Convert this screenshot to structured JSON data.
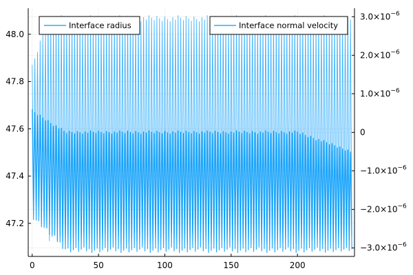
{
  "chart_data": {
    "type": "line",
    "title": "",
    "xlabel": "",
    "ylabel": "",
    "y2label": "",
    "grid": true,
    "xlim": [
      -3,
      243
    ],
    "ylim": [
      47.06,
      48.11
    ],
    "y2lim": [
      -3.22e-06,
      3.22e-06
    ],
    "x_ticks": [
      {
        "value": 0,
        "label": "0"
      },
      {
        "value": 50,
        "label": "50"
      },
      {
        "value": 100,
        "label": "100"
      },
      {
        "value": 150,
        "label": "150"
      },
      {
        "value": 200,
        "label": "200"
      }
    ],
    "y_ticks": [
      {
        "value": 47.2,
        "label": "47.2"
      },
      {
        "value": 47.4,
        "label": "47.4"
      },
      {
        "value": 47.6,
        "label": "47.6"
      },
      {
        "value": 47.8,
        "label": "47.8"
      },
      {
        "value": 48.0,
        "label": "48.0"
      }
    ],
    "y2_ticks": [
      {
        "value": 3e-06,
        "mantissa": "3.0×10",
        "exponent": "−6"
      },
      {
        "value": 2e-06,
        "mantissa": "2.0×10",
        "exponent": "−6"
      },
      {
        "value": 1e-06,
        "mantissa": "1.0×10",
        "exponent": "−6"
      },
      {
        "value": 0,
        "mantissa": "0",
        "exponent": ""
      },
      {
        "value": -1e-06,
        "mantissa": "−1.0×10",
        "exponent": "−6"
      },
      {
        "value": -2e-06,
        "mantissa": "−2.0×10",
        "exponent": "−6"
      },
      {
        "value": -3e-06,
        "mantissa": "−3.0×10",
        "exponent": "−6"
      }
    ],
    "legend_left": {
      "placement": "top-left",
      "label": "Interface radius"
    },
    "legend_right": {
      "placement": "top-right",
      "label": "Interface normal velocity"
    },
    "series": [
      {
        "name": "Interface radius",
        "axis": "left",
        "color": "#009af9",
        "x_start": 0,
        "x_end": 240,
        "period": 2.0,
        "min_start": 47.31,
        "min_steady": 47.14,
        "max_start": 47.87,
        "max_steady": 48.08,
        "settle_time": 12,
        "note_values": "oscillates between the min and max envelopes above"
      },
      {
        "name": "Interface normal velocity",
        "axis": "right",
        "color": "#009af9",
        "x_start": 0,
        "x_end": 240,
        "period": 2.0,
        "min_start": -2.2e-06,
        "min_steady": -3.05e-06,
        "max_start": 6e-07,
        "max_steady": 5e-08,
        "tail_max": -4.5e-07,
        "settle_time": 25,
        "note_values": "oscillates between the min and max envelopes above"
      }
    ]
  }
}
